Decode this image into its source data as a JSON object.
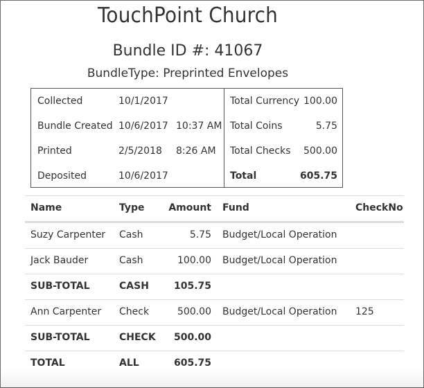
{
  "header": {
    "church_name": "TouchPoint Church",
    "bundle_id_label": "Bundle ID #: 41067",
    "bundle_type_label": "BundleType: Preprinted Envelopes"
  },
  "summary": {
    "dates": [
      {
        "label": "Collected",
        "date": "10/1/2017",
        "time": ""
      },
      {
        "label": "Bundle Created",
        "date": "10/6/2017",
        "time": "10:37 AM"
      },
      {
        "label": "Printed",
        "date": "2/5/2018",
        "time": "8:26 AM"
      },
      {
        "label": "Deposited",
        "date": "10/6/2017",
        "time": ""
      }
    ],
    "totals": [
      {
        "label": "Total Currency",
        "value": "100.00"
      },
      {
        "label": "Total Coins",
        "value": "5.75"
      },
      {
        "label": "Total Checks",
        "value": "500.00"
      },
      {
        "label": "Total",
        "value": "605.75"
      }
    ]
  },
  "table": {
    "headers": {
      "name": "Name",
      "type": "Type",
      "amount": "Amount",
      "fund": "Fund",
      "checkno": "CheckNo"
    },
    "rows": [
      {
        "name": "Suzy Carpenter",
        "type": "Cash",
        "amount": "5.75",
        "fund": "Budget/Local Operation",
        "checkno": ""
      },
      {
        "name": "Jack Bauder",
        "type": "Cash",
        "amount": "100.00",
        "fund": "Budget/Local Operation",
        "checkno": ""
      },
      {
        "name": "SUB-TOTAL",
        "type": "CASH",
        "amount": "105.75",
        "fund": "",
        "checkno": ""
      },
      {
        "name": "Ann Carpenter",
        "type": "Check",
        "amount": "500.00",
        "fund": "Budget/Local Operation",
        "checkno": "125"
      },
      {
        "name": "SUB-TOTAL",
        "type": "CHECK",
        "amount": "500.00",
        "fund": "",
        "checkno": ""
      },
      {
        "name": "TOTAL",
        "type": "ALL",
        "amount": "605.75",
        "fund": "",
        "checkno": ""
      }
    ]
  }
}
